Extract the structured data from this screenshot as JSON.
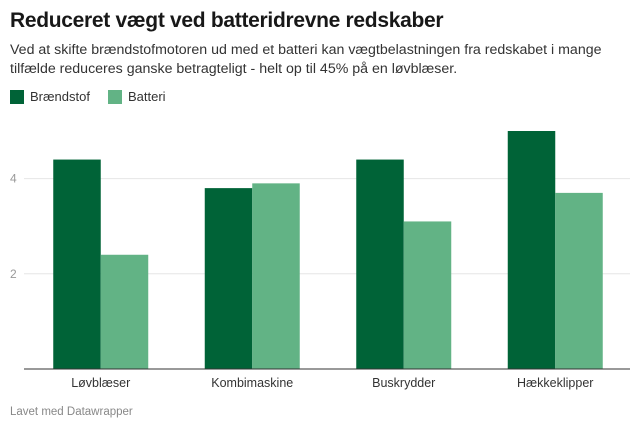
{
  "header": {
    "title": "Reduceret vægt ved batteridrevne redskaber",
    "subtitle": "Ved at skifte brændstofmotoren ud med et batteri kan vægtbelastningen fra redskabet i mange tilfælde reduceres ganske betragteligt - helt op til 45% på en løvblæser."
  },
  "footer": {
    "credit": "Lavet med Datawrapper"
  },
  "chart_data": {
    "type": "bar",
    "title": "Reduceret vægt ved batteridrevne redskaber",
    "categories": [
      "Løvblæser",
      "Kombimaskine",
      "Buskrydder",
      "Hækkeklipper"
    ],
    "series": [
      {
        "name": "Brændstof",
        "color": "#006337",
        "values": [
          4.4,
          3.8,
          4.4,
          5.0
        ]
      },
      {
        "name": "Batteri",
        "color": "#62b385",
        "values": [
          2.4,
          3.9,
          3.1,
          3.7
        ]
      }
    ],
    "yticks": [
      "2",
      "4"
    ],
    "ytick_values": [
      2,
      4
    ],
    "ylim": [
      0,
      5
    ],
    "xlabel": "",
    "ylabel": "",
    "grid": true,
    "legend": "top-left"
  }
}
